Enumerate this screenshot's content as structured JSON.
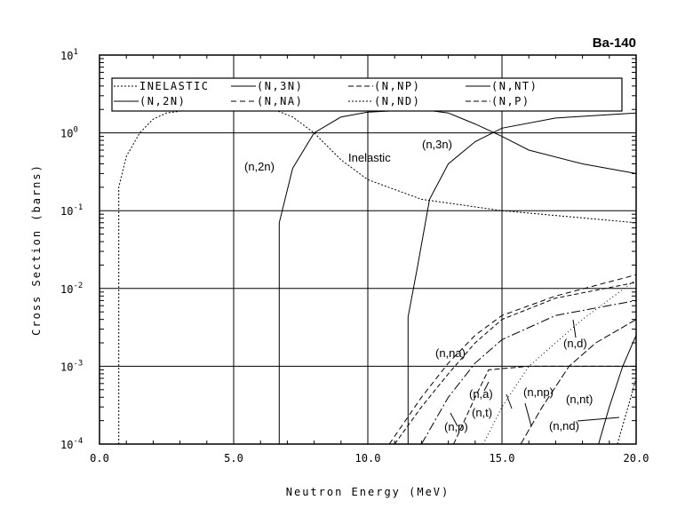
{
  "chart_data": {
    "type": "line",
    "title": "Ba-140",
    "xlabel": "Neutron Energy (MeV)",
    "ylabel": "Cross Section (barns)",
    "xlim": [
      0,
      20
    ],
    "ylim": [
      0.0001,
      10
    ],
    "yscale": "log",
    "grid": true,
    "xticks": [
      "0.0",
      "5.0",
      "10.0",
      "15.0",
      "20.0"
    ],
    "yticks": [
      {
        "base": "10",
        "exp": "1"
      },
      {
        "base": "10",
        "exp": "0"
      },
      {
        "base": "10",
        "exp": "-1"
      },
      {
        "base": "10",
        "exp": "-2"
      },
      {
        "base": "10",
        "exp": "-3"
      },
      {
        "base": "10",
        "exp": "-4"
      }
    ],
    "legend_position": "top",
    "legend": [
      "INELASTIC",
      "(N,3N)",
      "(N,NP)",
      "(N,NT)",
      "(N,2N)",
      "(N,NA)",
      "(N,ND)",
      "(N,P)"
    ],
    "series": [
      {
        "name": "INELASTIC",
        "label": "Inelastic",
        "dash": "2,2",
        "x": [
          0.72,
          0.72,
          1.0,
          1.5,
          2.0,
          2.5,
          3.5,
          5,
          6.5,
          7.2,
          8,
          9,
          10,
          12,
          15,
          20
        ],
        "y": [
          0.0001,
          0.2,
          0.5,
          1.0,
          1.5,
          1.8,
          2.0,
          2.0,
          2.0,
          1.6,
          1.0,
          0.45,
          0.25,
          0.14,
          0.1,
          0.07
        ]
      },
      {
        "name": "(N,2N)",
        "label": "(n,2n)",
        "dash": "",
        "x": [
          6.7,
          6.7,
          7.2,
          8,
          9,
          10,
          12,
          13,
          14,
          15,
          16,
          18,
          20
        ],
        "y": [
          0.0001,
          0.07,
          0.35,
          1.0,
          1.6,
          1.85,
          2.0,
          1.8,
          1.3,
          0.9,
          0.6,
          0.4,
          0.3
        ]
      },
      {
        "name": "(N,3N)",
        "label": "(n,3n)",
        "dash": "",
        "x": [
          11.5,
          11.5,
          11.85,
          12.3,
          13,
          14,
          15,
          17,
          20
        ],
        "y": [
          0.0001,
          0.0043,
          0.019,
          0.14,
          0.4,
          0.77,
          1.15,
          1.55,
          1.8
        ]
      },
      {
        "name": "(N,NA)",
        "label": "(n,na)",
        "dash": "6,4",
        "x": [
          10.8,
          12,
          13,
          14,
          15,
          17,
          20
        ],
        "y": [
          0.0001,
          0.0004,
          0.0011,
          0.0025,
          0.0045,
          0.008,
          0.015
        ]
      },
      {
        "name": "(N,NP)",
        "label": "(n,np)",
        "dash": "8,3",
        "x": [
          15.7,
          16.5,
          17.5,
          18.5,
          20
        ],
        "y": [
          0.0001,
          0.0003,
          0.001,
          0.002,
          0.004
        ]
      },
      {
        "name": "(N,NT)",
        "label": "(n,nt)",
        "dash": "",
        "x": [
          18.6,
          19.0,
          19.5,
          20
        ],
        "y": [
          0.0001,
          0.0003,
          0.001,
          0.0025
        ]
      },
      {
        "name": "(N,ND)",
        "label": "(n,nd)",
        "dash": "2,2",
        "x": [
          19.3,
          19.7,
          20
        ],
        "y": [
          0.0001,
          0.0003,
          0.0007
        ]
      },
      {
        "name": "(N,P)",
        "label": "(n,p)",
        "dash": "10,3,2,3",
        "x": [
          12.0,
          13,
          14,
          15,
          17,
          20
        ],
        "y": [
          0.0001,
          0.0004,
          0.0011,
          0.0022,
          0.0045,
          0.007
        ]
      },
      {
        "name": "(N,A)",
        "label": "(n,a)",
        "dash": "5,3",
        "x": [
          11,
          12,
          13,
          14,
          15,
          17,
          20
        ],
        "y": [
          0.0001,
          0.0003,
          0.0008,
          0.002,
          0.004,
          0.0075,
          0.012
        ]
      },
      {
        "name": "(N,T)",
        "label": "(n,t)",
        "dash": "6,3",
        "x": [
          13.2,
          14,
          14.5,
          16,
          18,
          20
        ],
        "y": [
          0.0001,
          0.0004,
          0.0009,
          0.001,
          0.001,
          0.001
        ]
      },
      {
        "name": "(N,D)",
        "label": "(n,d)",
        "dash": "1,3",
        "x": [
          14.3,
          15,
          16,
          17,
          18,
          20
        ],
        "y": [
          0.0001,
          0.0003,
          0.001,
          0.002,
          0.004,
          0.013
        ]
      }
    ]
  }
}
